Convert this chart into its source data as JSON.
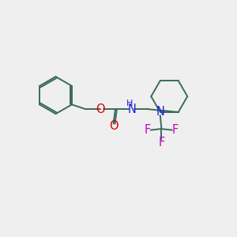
{
  "background_color": "#efefef",
  "bond_color": "#3a6b5a",
  "atom_colors": {
    "O": "#e00000",
    "N": "#2020dd",
    "F": "#cc00cc",
    "H": "#2020dd"
  },
  "line_width": 1.4,
  "font_size": 10.5,
  "fig_size": [
    3.0,
    3.0
  ],
  "dpi": 100
}
